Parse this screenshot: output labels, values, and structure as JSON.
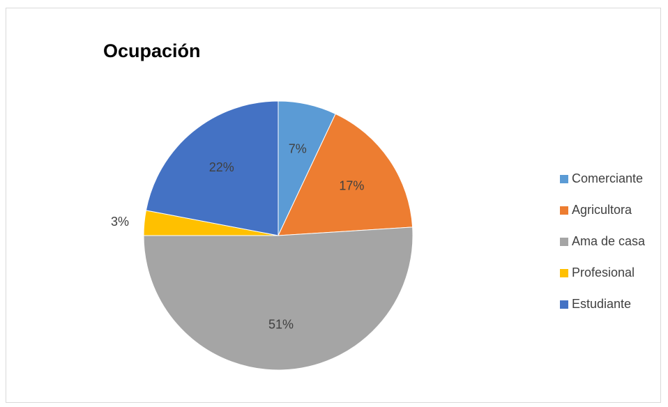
{
  "chart_data": {
    "type": "pie",
    "title": "Ocupación",
    "categories": [
      "Comerciante",
      "Agricultora",
      "Ama de casa",
      "Profesional",
      "Estudiante"
    ],
    "values": [
      7,
      17,
      51,
      3,
      22
    ],
    "data_labels": [
      "7%",
      "17%",
      "51%",
      "3%",
      "22%"
    ],
    "colors": [
      "#5b9bd5",
      "#ed7d31",
      "#a5a5a5",
      "#ffc000",
      "#4472c4"
    ],
    "legend_position": "right"
  }
}
